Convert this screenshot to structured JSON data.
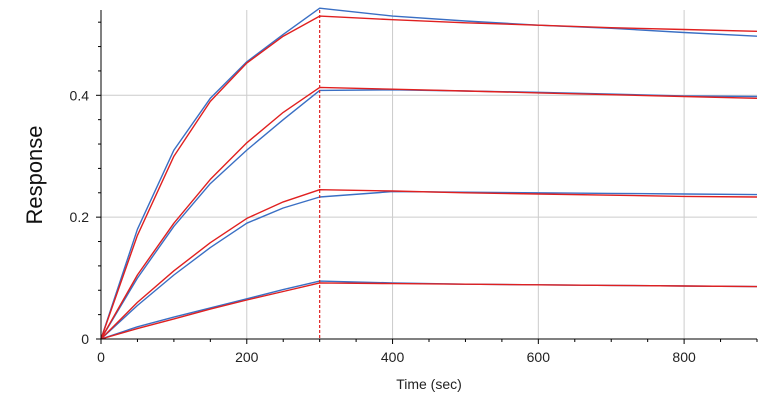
{
  "chart_data": {
    "type": "line",
    "title": "",
    "xlabel": "Time (sec)",
    "ylabel": "Response",
    "xlim": [
      0,
      900
    ],
    "ylim": [
      0,
      0.54
    ],
    "x_ticks": [
      0,
      200,
      400,
      600,
      800
    ],
    "x_tick_labels": [
      "0",
      "200",
      "400",
      "600",
      "800"
    ],
    "y_ticks": [
      0,
      0.2,
      0.4
    ],
    "y_tick_labels": [
      "0",
      "0.2",
      "0.4"
    ],
    "grid": true,
    "injection_end_marker_x": 300,
    "colors": {
      "measured": "#3a6fc4",
      "fit": "#e02020",
      "marker": "#e02020",
      "grid": "#cccccc",
      "axis": "#000000"
    },
    "series": [
      {
        "kind": "measured",
        "x": [
          0,
          50,
          100,
          150,
          200,
          250,
          300,
          400,
          500,
          600,
          700,
          800,
          900
        ],
        "values": [
          0,
          0.18,
          0.31,
          0.395,
          0.455,
          0.5,
          0.543,
          0.53,
          0.522,
          0.515,
          0.51,
          0.503,
          0.497
        ]
      },
      {
        "kind": "fit",
        "x": [
          0,
          50,
          100,
          150,
          200,
          250,
          300,
          400,
          500,
          600,
          700,
          800,
          900
        ],
        "values": [
          0,
          0.17,
          0.3,
          0.39,
          0.453,
          0.497,
          0.53,
          0.524,
          0.519,
          0.515,
          0.511,
          0.508,
          0.505
        ]
      },
      {
        "kind": "measured",
        "x": [
          0,
          50,
          100,
          150,
          200,
          250,
          300,
          400,
          500,
          600,
          700,
          800,
          900
        ],
        "values": [
          0,
          0.1,
          0.185,
          0.255,
          0.31,
          0.36,
          0.408,
          0.409,
          0.407,
          0.405,
          0.402,
          0.399,
          0.398
        ]
      },
      {
        "kind": "fit",
        "x": [
          0,
          50,
          100,
          150,
          200,
          250,
          300,
          400,
          500,
          600,
          700,
          800,
          900
        ],
        "values": [
          0,
          0.105,
          0.19,
          0.262,
          0.322,
          0.372,
          0.413,
          0.41,
          0.407,
          0.404,
          0.401,
          0.398,
          0.395
        ]
      },
      {
        "kind": "measured",
        "x": [
          0,
          50,
          100,
          150,
          200,
          250,
          300,
          400,
          500,
          600,
          700,
          800,
          900
        ],
        "values": [
          0,
          0.055,
          0.105,
          0.15,
          0.19,
          0.215,
          0.233,
          0.242,
          0.241,
          0.24,
          0.239,
          0.238,
          0.237
        ]
      },
      {
        "kind": "fit",
        "x": [
          0,
          50,
          100,
          150,
          200,
          250,
          300,
          400,
          500,
          600,
          700,
          800,
          900
        ],
        "values": [
          0,
          0.06,
          0.112,
          0.158,
          0.198,
          0.225,
          0.245,
          0.243,
          0.24,
          0.238,
          0.236,
          0.234,
          0.233
        ]
      },
      {
        "kind": "measured",
        "x": [
          0,
          50,
          100,
          150,
          200,
          250,
          300,
          400,
          500,
          600,
          700,
          800,
          900
        ],
        "values": [
          0,
          0.02,
          0.036,
          0.051,
          0.066,
          0.081,
          0.095,
          0.092,
          0.09,
          0.089,
          0.088,
          0.087,
          0.086
        ]
      },
      {
        "kind": "fit",
        "x": [
          0,
          50,
          100,
          150,
          200,
          250,
          300,
          400,
          500,
          600,
          700,
          800,
          900
        ],
        "values": [
          0,
          0.017,
          0.033,
          0.049,
          0.064,
          0.078,
          0.092,
          0.091,
          0.09,
          0.089,
          0.088,
          0.087,
          0.086
        ]
      }
    ]
  }
}
